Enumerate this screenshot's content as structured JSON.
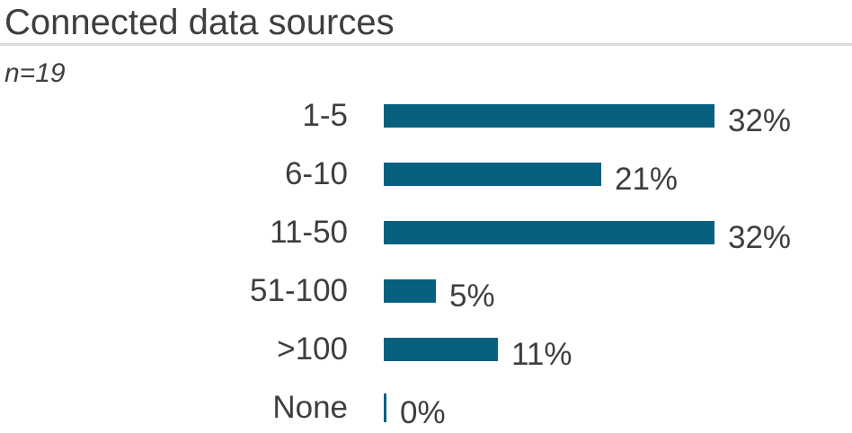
{
  "title": "Connected data sources",
  "subtitle": "n=19",
  "colors": {
    "bar": "#06607e",
    "text": "#3e3e3e",
    "rule": "#d9d9d9"
  },
  "chart_data": {
    "type": "bar",
    "orientation": "horizontal",
    "title": "Connected data sources",
    "subtitle": "n=19",
    "categories": [
      "1-5",
      "6-10",
      "11-50",
      "51-100",
      ">100",
      "None"
    ],
    "values": [
      32,
      21,
      32,
      5,
      11,
      0
    ],
    "value_labels": [
      "32%",
      "21%",
      "32%",
      "5%",
      "11%",
      "0%"
    ],
    "unit": "%",
    "xlabel": "",
    "ylabel": "",
    "xlim": [
      0,
      32
    ],
    "grid": false,
    "legend": false,
    "value_label_position": "outside-end"
  }
}
